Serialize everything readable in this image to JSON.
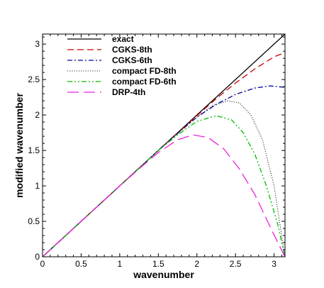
{
  "chart_data": {
    "type": "line",
    "title": "",
    "xlabel": "wavenumber",
    "ylabel": "modified wavenumber",
    "xlim": [
      0,
      3.14159
    ],
    "ylim": [
      0,
      3.14159
    ],
    "xticks": [
      "0",
      "0.5",
      "1",
      "1.5",
      "2",
      "2.5",
      "3"
    ],
    "yticks": [
      "0",
      "0.5",
      "1",
      "1.5",
      "2",
      "2.5",
      "3"
    ],
    "grid": false,
    "legend_position": "top-left",
    "series": [
      {
        "name": "exact",
        "color": "#000000",
        "dash": "solid",
        "x": [
          0,
          3.14159
        ],
        "y": [
          0,
          3.14159
        ]
      },
      {
        "name": "CGKS-8th",
        "color": "#cc0000",
        "dash": "dashed",
        "x": [
          0,
          0.5,
          1.0,
          1.5,
          2.0,
          2.25,
          2.5,
          2.75,
          3.0,
          3.14
        ],
        "y": [
          0,
          0.5,
          1.0,
          1.5,
          1.99,
          2.23,
          2.45,
          2.65,
          2.82,
          2.88
        ]
      },
      {
        "name": "CGKS-6th",
        "color": "#000099",
        "dash": "dashdot",
        "x": [
          0,
          0.5,
          1.0,
          1.5,
          1.75,
          2.0,
          2.25,
          2.5,
          2.75,
          2.95,
          3.14
        ],
        "y": [
          0,
          0.5,
          1.0,
          1.5,
          1.74,
          1.97,
          2.15,
          2.29,
          2.38,
          2.41,
          2.39
        ]
      },
      {
        "name": "compact FD-8th",
        "color": "#333333",
        "dash": "dotted",
        "x": [
          0,
          0.5,
          1.0,
          1.5,
          1.75,
          2.0,
          2.2,
          2.4,
          2.55,
          2.7,
          2.85,
          3.0,
          3.14
        ],
        "y": [
          0,
          0.5,
          1.0,
          1.5,
          1.74,
          1.97,
          2.13,
          2.2,
          2.17,
          2.0,
          1.65,
          1.0,
          0
        ]
      },
      {
        "name": "compact FD-6th",
        "color": "#00bb00",
        "dash": "dashdotdot",
        "x": [
          0,
          0.5,
          1.0,
          1.5,
          1.75,
          2.0,
          2.25,
          2.45,
          2.6,
          2.75,
          2.9,
          3.05,
          3.14
        ],
        "y": [
          0,
          0.5,
          1.0,
          1.5,
          1.72,
          1.91,
          1.99,
          1.93,
          1.75,
          1.45,
          1.0,
          0.45,
          0
        ]
      },
      {
        "name": "DRP-4th",
        "color": "#ee22dd",
        "dash": "longdash",
        "x": [
          0,
          0.5,
          1.0,
          1.25,
          1.5,
          1.75,
          1.95,
          2.15,
          2.35,
          2.55,
          2.75,
          2.95,
          3.14
        ],
        "y": [
          0,
          0.5,
          1.0,
          1.24,
          1.47,
          1.65,
          1.72,
          1.68,
          1.52,
          1.24,
          0.88,
          0.42,
          0
        ]
      }
    ]
  }
}
